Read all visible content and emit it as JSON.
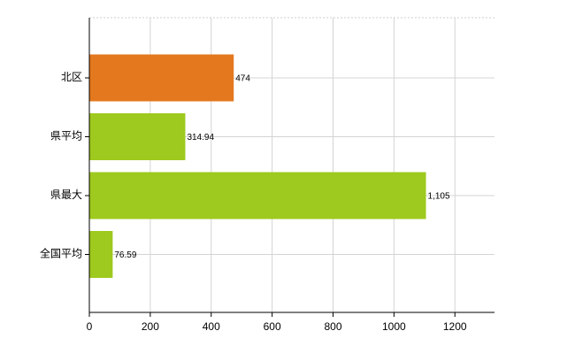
{
  "chart_data": {
    "type": "barh",
    "categories": [
      "北区",
      "県平均",
      "県最大",
      "全国平均"
    ],
    "values": [
      474,
      314.94,
      1105,
      76.59
    ],
    "value_labels": [
      "474",
      "314.94",
      "1,105",
      "76.59"
    ],
    "colors": [
      "#e3781e",
      "#9ec91e",
      "#9ec91e",
      "#9ec91e"
    ],
    "xlim": [
      0,
      1330
    ],
    "xticks": [
      0,
      200,
      400,
      600,
      800,
      1000,
      1200
    ],
    "grid": true
  }
}
